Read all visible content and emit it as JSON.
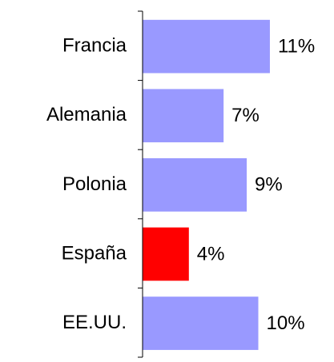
{
  "chart_data": {
    "type": "barh",
    "categories": [
      "Francia",
      "Alemania",
      "Polonia",
      "España",
      "EE.UU."
    ],
    "values": [
      11,
      7,
      9,
      4,
      10
    ],
    "value_labels": [
      "11%",
      "7%",
      "9%",
      "4%",
      "10%"
    ],
    "colors": [
      "#9999ff",
      "#9999ff",
      "#9999ff",
      "#ff0000",
      "#9999ff"
    ]
  }
}
